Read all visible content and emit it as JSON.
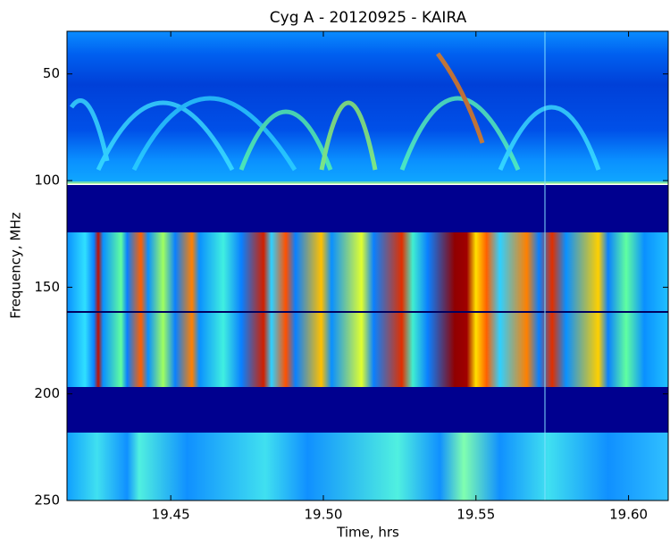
{
  "chart_data": {
    "type": "heatmap",
    "title": "Cyg A - 20120925 - KAIRA",
    "x_label": "Time, hrs",
    "y_label": "Frequency, MHz",
    "xlim": [
      19.416,
      19.613
    ],
    "xticks": [
      19.45,
      {
        "value": 19.5,
        "label": "19.50"
      },
      19.55,
      {
        "value": 19.6,
        "label": "19.60"
      }
    ],
    "ylim": [
      250,
      30
    ],
    "yticks": [
      50,
      100,
      150,
      200,
      250
    ],
    "colormap": "jet"
  }
}
